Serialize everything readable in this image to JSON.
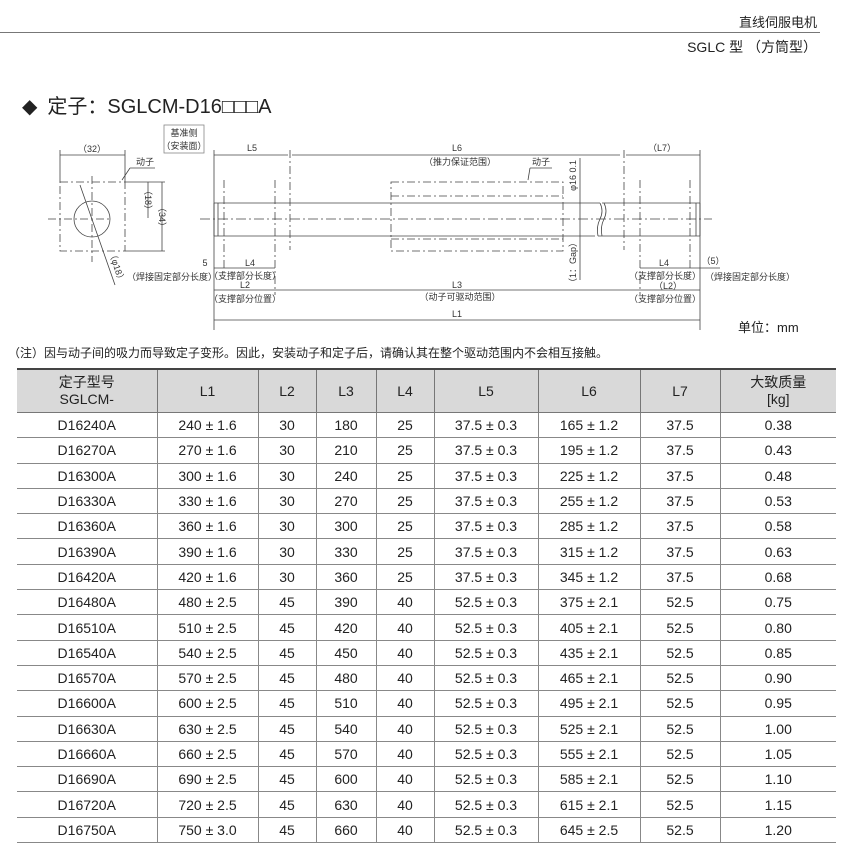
{
  "header": {
    "category": "直线伺服电机",
    "series": "SGLC 型 （方筒型）"
  },
  "title": {
    "bullet": "◆",
    "text": "定子：SGLCM-D16□□□A"
  },
  "drawing": {
    "ref_side": [
      "基准侧",
      "（安装面）"
    ],
    "dim_32": "（32）",
    "dim_18": "（18）",
    "dim_34": "（34）",
    "dim_phi18": "（φ18）",
    "mover": "动子",
    "L5": "L5",
    "L6": "L6",
    "L6_note": "（推力保证范围）",
    "L7": "（L7）",
    "phi16": "φ16  0.1",
    "gap": "（1：Gap）",
    "dim_5": "5",
    "dim_5r": "（5）",
    "weld_len": "（焊接固定部分长度）",
    "L4": "L4",
    "support_len": "（支撑部分长度）",
    "L2": "L2",
    "L2r": "（L2）",
    "support_pos": "（支撑部分位置）",
    "L3": "L3",
    "L3_note": "（动子可驱动范围）",
    "L1": "L1"
  },
  "unit": "单位：mm",
  "note": "（注）因与动子间的吸力而导致定子变形。因此，安装动子和定子后，请确认其在整个驱动范围内不会相互接触。",
  "table": {
    "headers": [
      [
        "定子型号",
        "SGLCM-"
      ],
      [
        "L1"
      ],
      [
        "L2"
      ],
      [
        "L3"
      ],
      [
        "L4"
      ],
      [
        "L5"
      ],
      [
        "L6"
      ],
      [
        "L7"
      ],
      [
        "大致质量",
        "[kg]"
      ]
    ],
    "rows": [
      [
        "D16240A",
        "240 ± 1.6",
        "30",
        "180",
        "25",
        "37.5 ± 0.3",
        "165 ± 1.2",
        "37.5",
        "0.38"
      ],
      [
        "D16270A",
        "270 ± 1.6",
        "30",
        "210",
        "25",
        "37.5 ± 0.3",
        "195 ± 1.2",
        "37.5",
        "0.43"
      ],
      [
        "D16300A",
        "300 ± 1.6",
        "30",
        "240",
        "25",
        "37.5 ± 0.3",
        "225 ± 1.2",
        "37.5",
        "0.48"
      ],
      [
        "D16330A",
        "330 ± 1.6",
        "30",
        "270",
        "25",
        "37.5 ± 0.3",
        "255 ± 1.2",
        "37.5",
        "0.53"
      ],
      [
        "D16360A",
        "360 ± 1.6",
        "30",
        "300",
        "25",
        "37.5 ± 0.3",
        "285 ± 1.2",
        "37.5",
        "0.58"
      ],
      [
        "D16390A",
        "390 ± 1.6",
        "30",
        "330",
        "25",
        "37.5 ± 0.3",
        "315 ± 1.2",
        "37.5",
        "0.63"
      ],
      [
        "D16420A",
        "420 ± 1.6",
        "30",
        "360",
        "25",
        "37.5 ± 0.3",
        "345 ± 1.2",
        "37.5",
        "0.68"
      ],
      [
        "D16480A",
        "480 ± 2.5",
        "45",
        "390",
        "40",
        "52.5 ± 0.3",
        "375 ± 2.1",
        "52.5",
        "0.75"
      ],
      [
        "D16510A",
        "510 ± 2.5",
        "45",
        "420",
        "40",
        "52.5 ± 0.3",
        "405 ± 2.1",
        "52.5",
        "0.80"
      ],
      [
        "D16540A",
        "540 ± 2.5",
        "45",
        "450",
        "40",
        "52.5 ± 0.3",
        "435 ± 2.1",
        "52.5",
        "0.85"
      ],
      [
        "D16570A",
        "570 ± 2.5",
        "45",
        "480",
        "40",
        "52.5 ± 0.3",
        "465 ± 2.1",
        "52.5",
        "0.90"
      ],
      [
        "D16600A",
        "600 ± 2.5",
        "45",
        "510",
        "40",
        "52.5 ± 0.3",
        "495 ± 2.1",
        "52.5",
        "0.95"
      ],
      [
        "D16630A",
        "630 ± 2.5",
        "45",
        "540",
        "40",
        "52.5 ± 0.3",
        "525 ± 2.1",
        "52.5",
        "1.00"
      ],
      [
        "D16660A",
        "660 ± 2.5",
        "45",
        "570",
        "40",
        "52.5 ± 0.3",
        "555 ± 2.1",
        "52.5",
        "1.05"
      ],
      [
        "D16690A",
        "690 ± 2.5",
        "45",
        "600",
        "40",
        "52.5 ± 0.3",
        "585 ± 2.1",
        "52.5",
        "1.10"
      ],
      [
        "D16720A",
        "720 ± 2.5",
        "45",
        "630",
        "40",
        "52.5 ± 0.3",
        "615 ± 2.1",
        "52.5",
        "1.15"
      ],
      [
        "D16750A",
        "750 ± 3.0",
        "45",
        "660",
        "40",
        "52.5 ± 0.3",
        "645 ± 2.5",
        "52.5",
        "1.20"
      ]
    ]
  }
}
